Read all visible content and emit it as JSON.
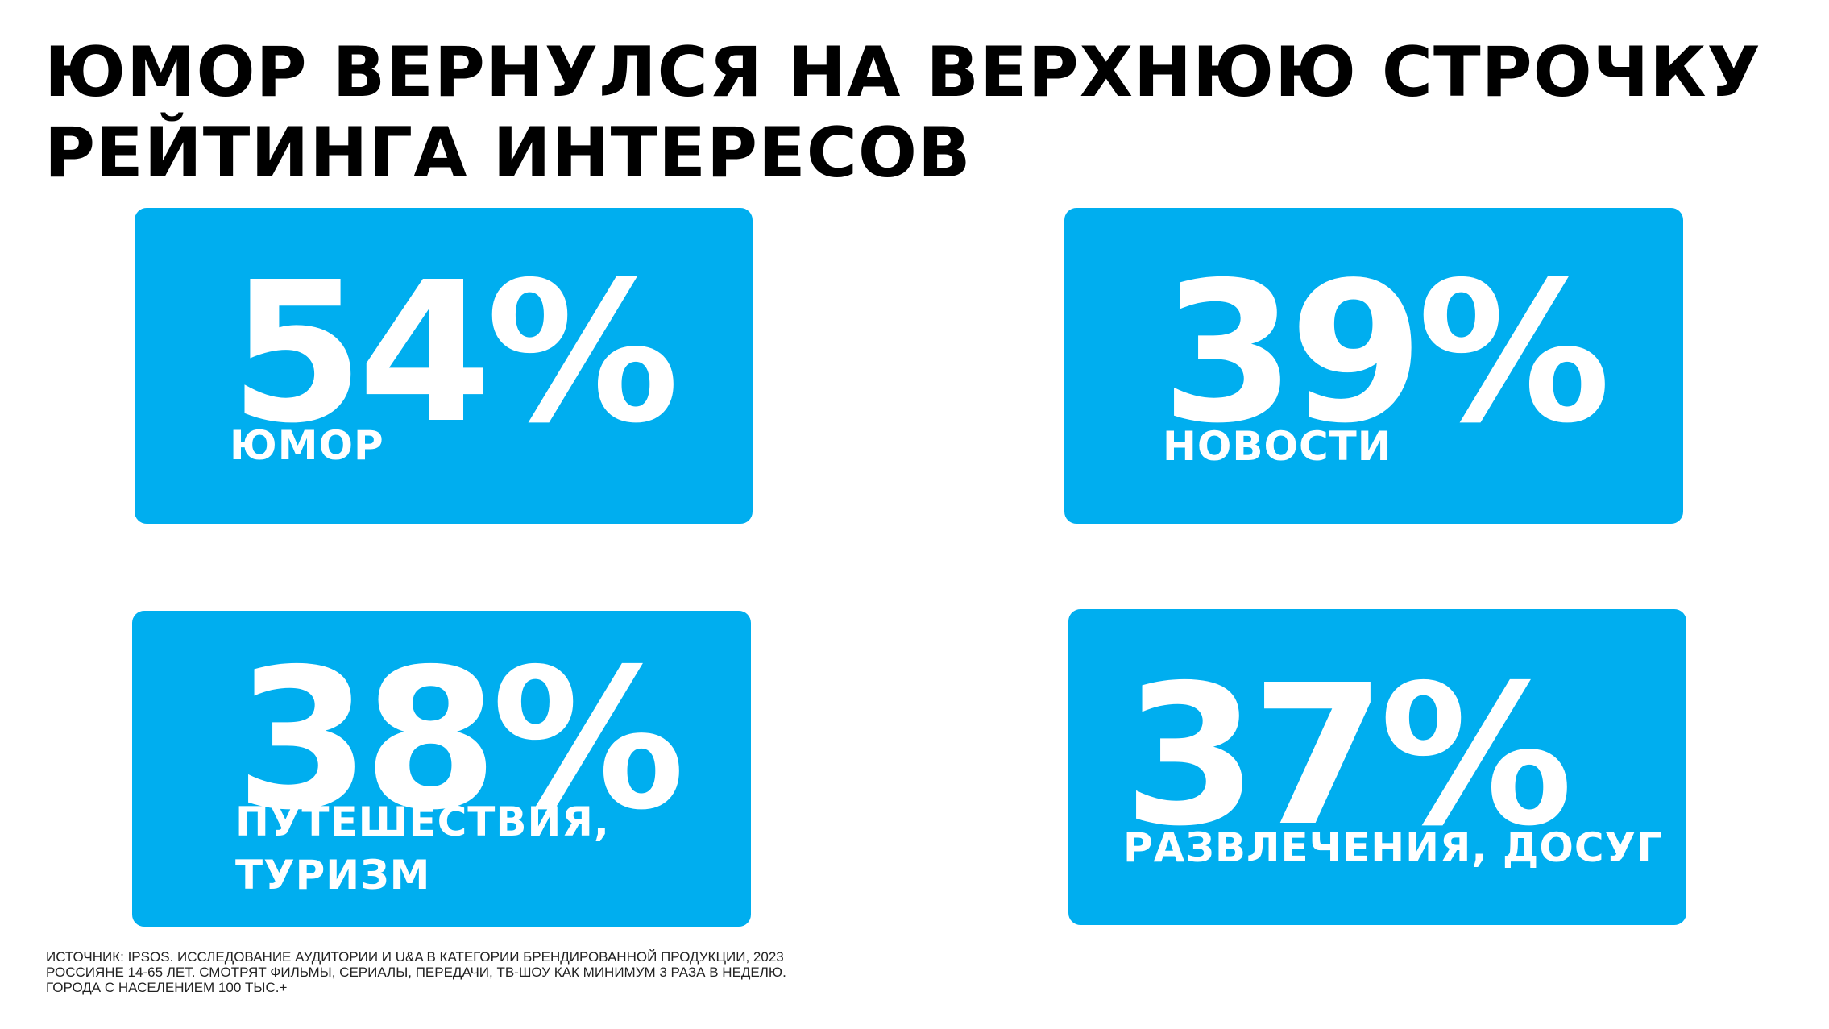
{
  "title": {
    "line1": "ЮМОР ВЕРНУЛСЯ НА ВЕРХНЮЮ СТРОЧКУ",
    "line2": "РЕЙТИНГА ИНТЕРЕСОВ"
  },
  "colors": {
    "card": "#00aeef",
    "text_on_card": "#ffffff",
    "title": "#000000"
  },
  "stats": [
    {
      "value": "54%",
      "label": "ЮМОР",
      "label_line2": ""
    },
    {
      "value": "39%",
      "label": "НОВОСТИ",
      "label_line2": ""
    },
    {
      "value": "38%",
      "label": "ПУТЕШЕСТВИЯ,",
      "label_line2": "ТУРИЗМ"
    },
    {
      "value": "37%",
      "label": "РАЗВЛЕЧЕНИЯ, ДОСУГ",
      "label_line2": ""
    }
  ],
  "footnote": {
    "line1": "ИСТОЧНИК: IPSOS.  ИССЛЕДОВАНИЕ АУДИТОРИИ И U&A В КАТЕГОРИИ БРЕНДИРОВАННОЙ ПРОДУКЦИИ, 2023",
    "line2": "РОССИЯНЕ 14-65 ЛЕТ. СМОТРЯТ ФИЛЬМЫ, СЕРИАЛЫ, ПЕРЕДАЧИ, ТВ-ШОУ КАК МИНИМУМ 3 РАЗА В НЕДЕЛЮ.",
    "line3": "ГОРОДА С НАСЕЛЕНИЕМ 100 ТЫС.+"
  }
}
